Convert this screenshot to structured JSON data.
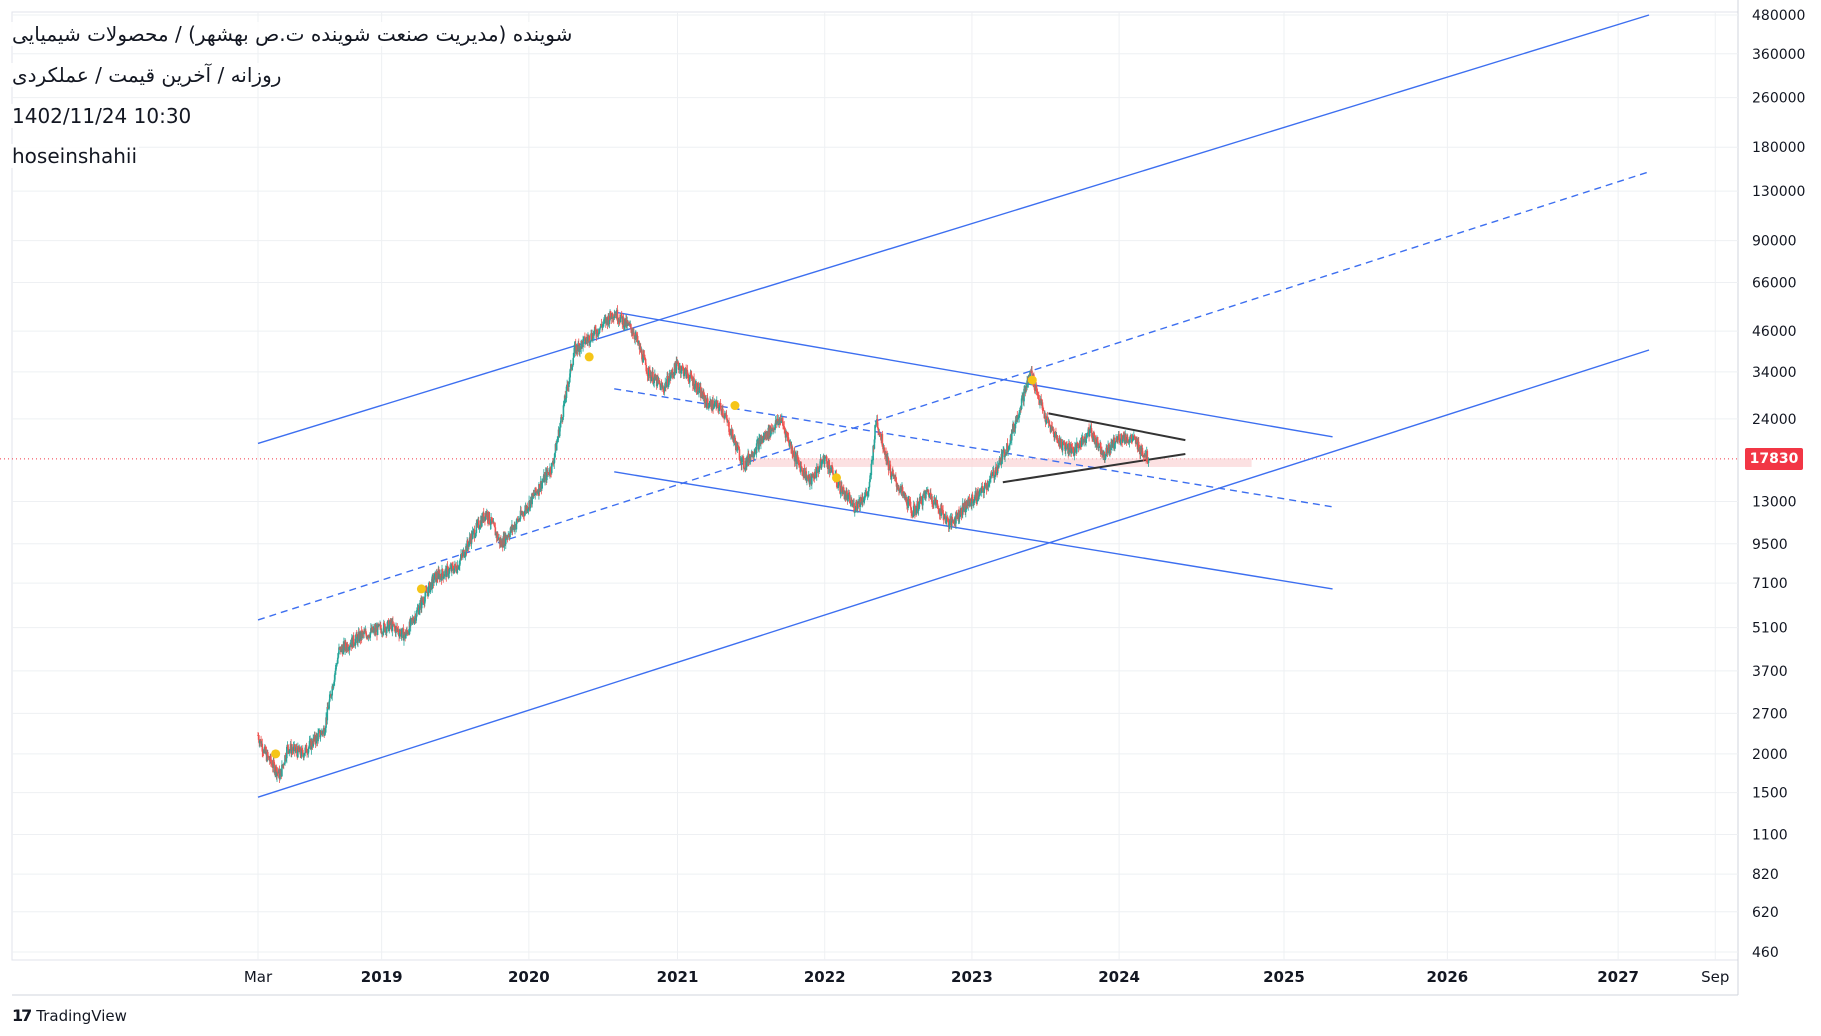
{
  "header": {
    "title": "شوینده (مدیریت صنعت شوینده ت.ص بهشهر) / محصولات شیمیایی",
    "subtitle": "روزانه / آخرین قیمت / عملکردی",
    "datetime": "1402/11/24 10:30",
    "author": "hoseinshahii"
  },
  "branding": {
    "logo_text": "TradingView"
  },
  "colors": {
    "grid": "#eef0f3",
    "trendline": "#3d6ff0",
    "pattern_line": "#333333",
    "candle_up": "#26a69a",
    "candle_down": "#ef5350",
    "marker": "#f5c518",
    "last_price": "#f23645",
    "zone": "#fbd4d6"
  },
  "chart_data": {
    "type": "candlestick",
    "scale": "log",
    "last_price": 17830,
    "last_price_label": "17830",
    "y_ticks": [
      480000,
      360000,
      260000,
      180000,
      130000,
      90000,
      66000,
      46000,
      34000,
      24000,
      13000,
      9500,
      7100,
      5100,
      3700,
      2700,
      2000,
      1500,
      1100,
      820,
      620,
      460
    ],
    "x_ticks": [
      {
        "label": "Mar",
        "t": 2018.0
      },
      {
        "label": "2019",
        "t": 2018.84
      },
      {
        "label": "2020",
        "t": 2019.84
      },
      {
        "label": "2021",
        "t": 2020.85
      },
      {
        "label": "2022",
        "t": 2021.85
      },
      {
        "label": "2023",
        "t": 2022.85
      },
      {
        "label": "2024",
        "t": 2023.85
      },
      {
        "label": "2025",
        "t": 2024.97
      },
      {
        "label": "2026",
        "t": 2026.08
      },
      {
        "label": "2027",
        "t": 2027.24
      },
      {
        "label": "Sep",
        "t": 2027.9
      }
    ],
    "price_path": [
      [
        2018.0,
        2300
      ],
      [
        2018.05,
        2000
      ],
      [
        2018.15,
        1700
      ],
      [
        2018.2,
        2100
      ],
      [
        2018.3,
        2000
      ],
      [
        2018.45,
        2400
      ],
      [
        2018.55,
        4300
      ],
      [
        2018.7,
        4800
      ],
      [
        2018.9,
        5200
      ],
      [
        2019.0,
        4800
      ],
      [
        2019.1,
        6000
      ],
      [
        2019.2,
        7400
      ],
      [
        2019.35,
        8000
      ],
      [
        2019.45,
        10000
      ],
      [
        2019.55,
        12000
      ],
      [
        2019.65,
        9500
      ],
      [
        2019.75,
        11000
      ],
      [
        2019.85,
        13000
      ],
      [
        2020.0,
        17000
      ],
      [
        2020.1,
        30000
      ],
      [
        2020.15,
        40000
      ],
      [
        2020.3,
        46000
      ],
      [
        2020.42,
        53000
      ],
      [
        2020.55,
        46000
      ],
      [
        2020.65,
        34000
      ],
      [
        2020.75,
        30000
      ],
      [
        2020.85,
        36000
      ],
      [
        2020.95,
        32000
      ],
      [
        2021.05,
        27000
      ],
      [
        2021.15,
        26000
      ],
      [
        2021.3,
        17000
      ],
      [
        2021.4,
        20000
      ],
      [
        2021.55,
        24000
      ],
      [
        2021.65,
        18000
      ],
      [
        2021.75,
        15000
      ],
      [
        2021.85,
        18000
      ],
      [
        2021.95,
        14500
      ],
      [
        2022.05,
        12500
      ],
      [
        2022.15,
        14000
      ],
      [
        2022.2,
        24000
      ],
      [
        2022.3,
        16000
      ],
      [
        2022.45,
        12000
      ],
      [
        2022.55,
        14000
      ],
      [
        2022.7,
        11000
      ],
      [
        2022.8,
        12500
      ],
      [
        2022.92,
        14000
      ],
      [
        2023.0,
        16000
      ],
      [
        2023.1,
        20000
      ],
      [
        2023.25,
        34000
      ],
      [
        2023.35,
        24000
      ],
      [
        2023.45,
        20000
      ],
      [
        2023.55,
        19000
      ],
      [
        2023.65,
        22000
      ],
      [
        2023.75,
        18500
      ],
      [
        2023.85,
        21000
      ],
      [
        2023.95,
        20500
      ],
      [
        2024.05,
        17830
      ]
    ],
    "markers": [
      {
        "t": 2018.12,
        "p": 2000
      },
      {
        "t": 2019.11,
        "p": 6800
      },
      {
        "t": 2020.25,
        "p": 38000
      },
      {
        "t": 2021.24,
        "p": 26500
      },
      {
        "t": 2021.93,
        "p": 15500
      },
      {
        "t": 2023.26,
        "p": 32000
      }
    ],
    "trendlines": [
      {
        "name": "channel-upper",
        "style": "solid",
        "from": [
          2018.0,
          20000
        ],
        "to": [
          2027.45,
          480000
        ]
      },
      {
        "name": "channel-mid",
        "style": "dashed",
        "from": [
          2018.0,
          5400
        ],
        "to": [
          2027.45,
          150000
        ]
      },
      {
        "name": "channel-lower",
        "style": "solid",
        "from": [
          2018.0,
          1450
        ],
        "to": [
          2027.45,
          40000
        ]
      },
      {
        "name": "down-upper",
        "style": "solid",
        "from": [
          2020.42,
          53000
        ],
        "to": [
          2025.3,
          21000
        ]
      },
      {
        "name": "down-mid",
        "style": "dashed",
        "from": [
          2020.42,
          30000
        ],
        "to": [
          2025.3,
          12500
        ]
      },
      {
        "name": "down-lower",
        "style": "solid",
        "from": [
          2020.42,
          16200
        ],
        "to": [
          2025.3,
          6800
        ]
      }
    ],
    "triangle": {
      "upper": {
        "from": [
          2023.37,
          25000
        ],
        "to": [
          2024.3,
          20500
        ]
      },
      "lower": {
        "from": [
          2023.06,
          15000
        ],
        "to": [
          2024.3,
          18500
        ]
      }
    },
    "zone": {
      "from_t": 2021.3,
      "to_t": 2024.75,
      "low": 16800,
      "high": 17900
    }
  }
}
